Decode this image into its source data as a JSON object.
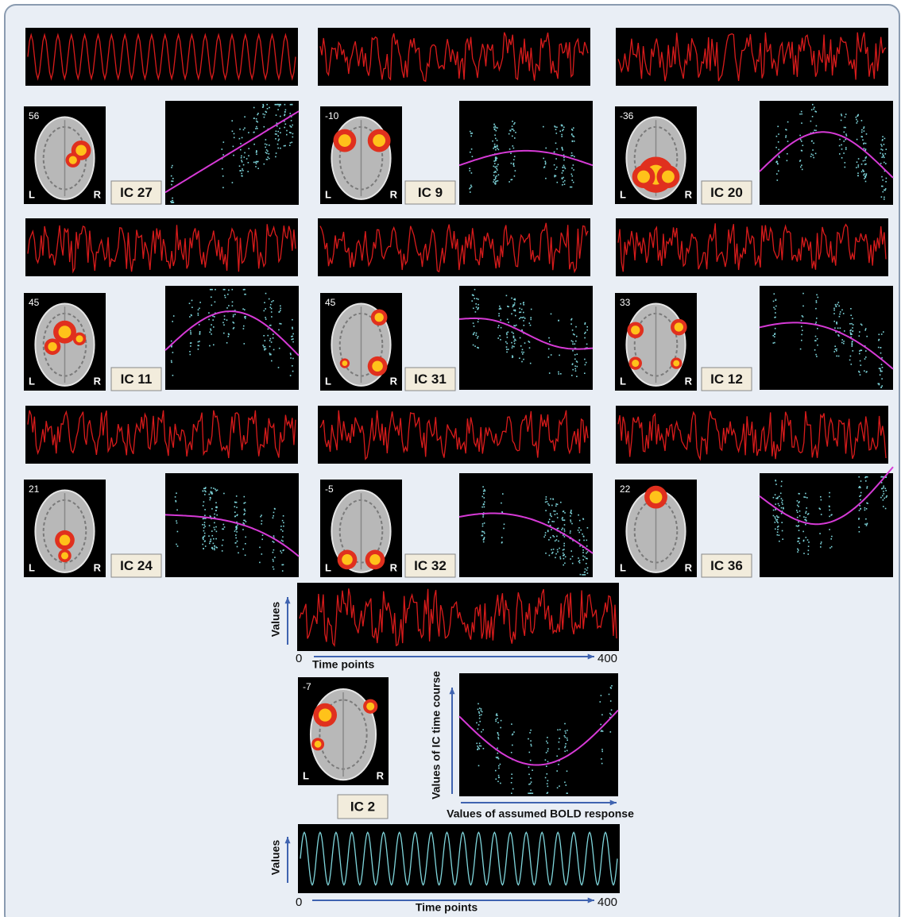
{
  "panels": [
    {
      "slice": 56,
      "left": "L",
      "right": "R",
      "label": "IC 27"
    },
    {
      "slice": -10,
      "left": "L",
      "right": "R",
      "label": "IC 9"
    },
    {
      "slice": -36,
      "left": "L",
      "right": "R",
      "label": "IC 20"
    },
    {
      "slice": 45,
      "left": "L",
      "right": "R",
      "label": "IC 11"
    },
    {
      "slice": 45,
      "left": "L",
      "right": "R",
      "label": "IC 31"
    },
    {
      "slice": 33,
      "left": "L",
      "right": "R",
      "label": "IC 12"
    },
    {
      "slice": 21,
      "left": "L",
      "right": "R",
      "label": "IC 24"
    },
    {
      "slice": -5,
      "left": "L",
      "right": "R",
      "label": "IC 32"
    },
    {
      "slice": 22,
      "left": "L",
      "right": "R",
      "label": "IC 36"
    }
  ],
  "example": {
    "time_series_axis": {
      "y_label": "Values",
      "x_start": 0,
      "x_label": "Time points",
      "x_end": 400
    },
    "slice": -7,
    "left": "L",
    "right": "R",
    "label": "IC 2",
    "scatter_y_label": "Values of IC time course",
    "scatter_x_label": "Values of assumed BOLD response",
    "reference_axis": {
      "y_label": "Values",
      "x_start": 0,
      "x_label": "Time points",
      "x_end": 400
    }
  }
}
